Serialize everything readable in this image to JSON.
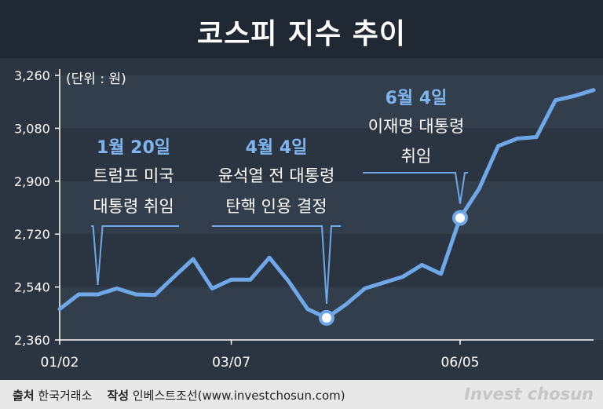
{
  "title": "코스피 지수 추이",
  "unit_label": "(단위 : 원)",
  "footer": {
    "source_label": "출처",
    "source_value": "한국거래소",
    "author_label": "작성",
    "author_value": "인베스트조선(www.investchosun.com)",
    "brand": "Invest chosun"
  },
  "colors": {
    "line": "#6fa8e8",
    "annotation_title": "#7fb4ee",
    "band_dark": "#2b3542",
    "band_light": "#333e4c"
  },
  "chart_data": {
    "type": "line",
    "title": "코스피 지수 추이",
    "ylim": [
      2360,
      3260
    ],
    "y_ticks": [
      "3,260",
      "3,080",
      "2,900",
      "2,720",
      "2,540",
      "2,360"
    ],
    "y_tick_values": [
      3260,
      3080,
      2900,
      2720,
      2540,
      2360
    ],
    "x_tick_labels": [
      {
        "label": "01/02",
        "index": 0
      },
      {
        "label": "03/07",
        "index": 9
      },
      {
        "label": "06/05",
        "index": 21
      }
    ],
    "series": [
      {
        "values": [
          2465,
          2515,
          2515,
          2535,
          2515,
          2513,
          2575,
          2635,
          2535,
          2565,
          2565,
          2640,
          2560,
          2465,
          2435,
          2480,
          2535,
          2555,
          2575,
          2615,
          2585,
          2775,
          2875,
          3020,
          3045,
          3050,
          3175,
          3190,
          3210
        ]
      }
    ],
    "annotations": [
      {
        "index": 2,
        "date": "1월 20일",
        "line1": "트럼프 미국",
        "line2": "대통령 취임",
        "marker": false
      },
      {
        "index": 14,
        "date": "4월 4일",
        "line1": "윤석열 전 대통령",
        "line2": "탄핵 인용 결정",
        "marker": true
      },
      {
        "index": 21,
        "date": "6월 4일",
        "line1": "이재명 대통령",
        "line2": "취임",
        "marker": true
      }
    ]
  }
}
